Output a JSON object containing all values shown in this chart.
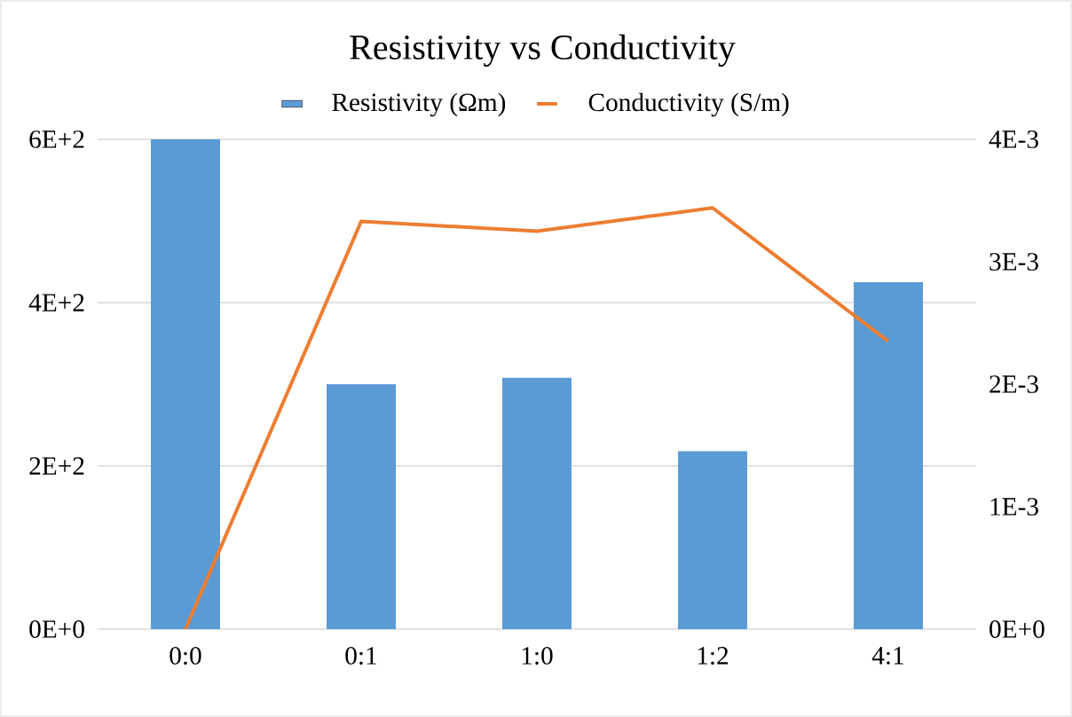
{
  "chart_data": {
    "type": "bar",
    "title": "Resistivity vs Conductivity",
    "categories": [
      "0:0",
      "0:1",
      "1:0",
      "1:2",
      "4:1"
    ],
    "series": [
      {
        "name": "Resistivity (Ωm)",
        "color": "#5b9bd5",
        "values": [
          600,
          300,
          308,
          218,
          425
        ]
      },
      {
        "name": "Conductivity (S/m)",
        "type": "line",
        "axis": "y2",
        "color": "#ed7d31",
        "values": [
          0,
          0.00333,
          0.00325,
          0.00344,
          0.00235
        ]
      }
    ],
    "ylim": [
      0,
      600
    ],
    "yticks": [
      {
        "value": 0,
        "label": "0E+0"
      },
      {
        "value": 200,
        "label": "2E+2"
      },
      {
        "value": 400,
        "label": "4E+2"
      },
      {
        "value": 600,
        "label": "6E+2"
      }
    ],
    "y2lim": [
      0,
      0.004
    ],
    "y2ticks": [
      {
        "value": 0,
        "label": "0E+0"
      },
      {
        "value": 0.001,
        "label": "1E-3"
      },
      {
        "value": 0.002,
        "label": "2E-3"
      },
      {
        "value": 0.003,
        "label": "3E-3"
      },
      {
        "value": 0.004,
        "label": "4E-3"
      }
    ],
    "grid": "y",
    "legend": "top"
  }
}
